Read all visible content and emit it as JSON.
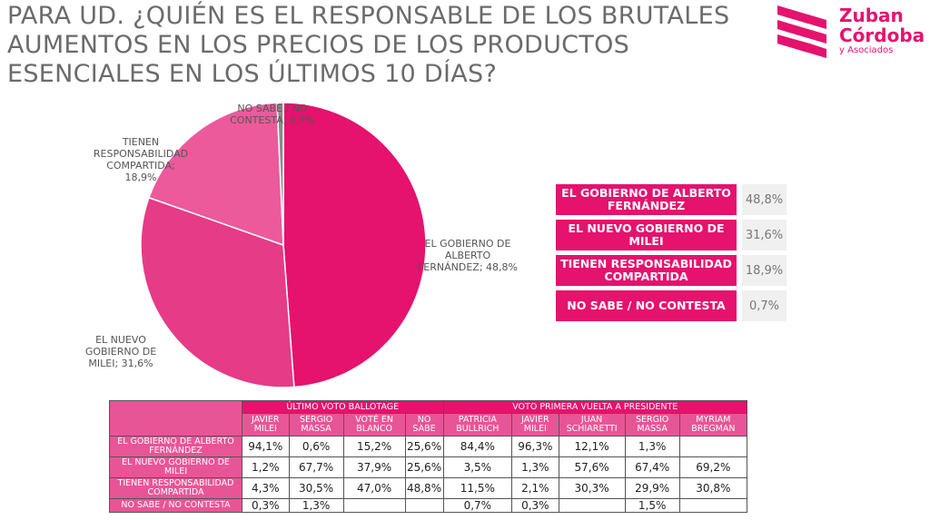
{
  "title": "PARA UD. ¿QUIÉN ES EL RESPONSABLE DE LOS BRUTALES AUMENTOS EN LOS PRECIOS DE LOS PRODUCTOS ESENCIALES EN LOS ÚLTIMOS 10 DÍAS?",
  "logo": {
    "line1": "Zuban",
    "line2": "Córdoba",
    "sub": "y Asociados"
  },
  "colors": {
    "accent": "#e5126e",
    "slice2": "#e63b86",
    "slice3": "#ec5a9b",
    "slice4": "#8a8a8a"
  },
  "chart_data": {
    "type": "pie",
    "title": "PARA UD. ¿QUIÉN ES EL RESPONSABLE DE LOS BRUTALES AUMENTOS EN LOS PRECIOS DE LOS PRODUCTOS ESENCIALES EN LOS ÚLTIMOS 10 DÍAS?",
    "slices": [
      {
        "label": "EL GOBIERNO DE ALBERTO FERNÁNDEZ",
        "value": 48.8,
        "data_label": "EL GOBIERNO DE ALBERTO FERNÁNDEZ; 48,8%"
      },
      {
        "label": "EL NUEVO GOBIERNO DE MILEI",
        "value": 31.6,
        "data_label": "EL NUEVO GOBIERNO DE MILEI; 31,6%"
      },
      {
        "label": "TIENEN RESPONSABILIDAD COMPARTIDA",
        "value": 18.9,
        "data_label": "TIENEN RESPONSABILIDAD COMPARTIDA; 18,9%"
      },
      {
        "label": "NO SABE / NO CONTESTA",
        "value": 0.7,
        "data_label": "NO SABE / NO CONTESTA; 0,7%"
      }
    ]
  },
  "legend": [
    {
      "label": "EL GOBIERNO DE ALBERTO FERNÁNDEZ",
      "value": "48,8%"
    },
    {
      "label": "EL NUEVO GOBIERNO DE MILEI",
      "value": "31,6%"
    },
    {
      "label": "TIENEN RESPONSABILIDAD COMPARTIDA",
      "value": "18,9%"
    },
    {
      "label": "NO SABE / NO CONTESTA",
      "value": "0,7%"
    }
  ],
  "crosstab": {
    "groups": [
      {
        "label": "ÚLTIMO VOTO BALLOTAGE",
        "columns": [
          "JAVIER MILEI",
          "SERGIO MASSA",
          "VOTÉ EN BLANCO",
          "NO SABE"
        ]
      },
      {
        "label": "VOTO PRIMERA VUELTA A PRESIDENTE",
        "columns": [
          "PATRICIA BULLRICH",
          "JAVIER MILEI",
          "JUAN SCHIARETTI",
          "SERGIO MASSA",
          "MYRIAM BREGMAN"
        ]
      }
    ],
    "rows": [
      {
        "label": "EL GOBIERNO DE ALBERTO FERNÁNDEZ",
        "values": [
          "94,1%",
          "0,6%",
          "15,2%",
          "25,6%",
          "84,4%",
          "96,3%",
          "12,1%",
          "1,3%",
          ""
        ]
      },
      {
        "label": "EL NUEVO GOBIERNO DE MILEI",
        "values": [
          "1,2%",
          "67,7%",
          "37,9%",
          "25,6%",
          "3,5%",
          "1,3%",
          "57,6%",
          "67,4%",
          "69,2%"
        ]
      },
      {
        "label": "TIENEN RESPONSABILIDAD COMPARTIDA",
        "values": [
          "4,3%",
          "30,5%",
          "47,0%",
          "48,8%",
          "11,5%",
          "2,1%",
          "30,3%",
          "29,9%",
          "30,8%"
        ]
      },
      {
        "label": "NO SABE / NO CONTESTA",
        "values": [
          "0,3%",
          "1,3%",
          "",
          "",
          "0,7%",
          "0,3%",
          "",
          "1,5%",
          ""
        ]
      }
    ]
  }
}
